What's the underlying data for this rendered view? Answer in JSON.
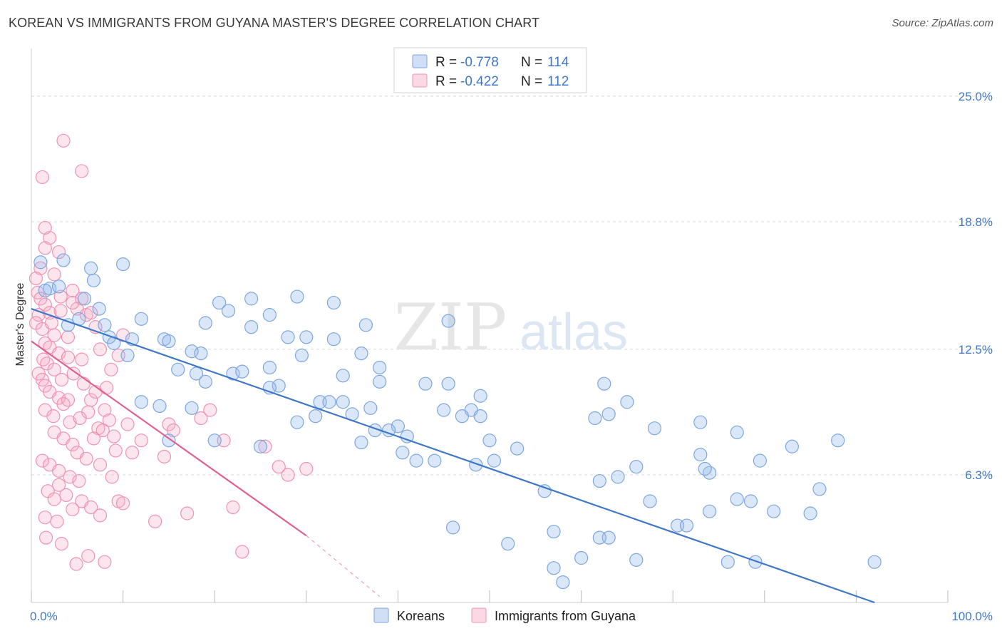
{
  "title": "KOREAN VS IMMIGRANTS FROM GUYANA MASTER'S DEGREE CORRELATION CHART",
  "source": "Source: ZipAtlas.com",
  "watermark": {
    "zip": "ZIP",
    "atlas": "atlas"
  },
  "legend_top": [
    {
      "r_label": "R =",
      "r_value": "-0.778",
      "n_label": "N =",
      "n_value": "114"
    },
    {
      "r_label": "R =",
      "r_value": "-0.422",
      "n_label": "N =",
      "n_value": "112"
    }
  ],
  "colors": {
    "blue": "#3f78c8",
    "blue_fill": "rgba(150,185,235,0.35)",
    "blue_stroke": "#7ea6de",
    "pink": "#e0608e",
    "pink_fill": "rgba(245,170,195,0.30)",
    "pink_stroke": "#ef93b4",
    "grid": "#d8d8d8"
  },
  "chart_data": {
    "type": "scatter",
    "ylabel": "Master's Degree",
    "xlim": [
      0,
      100
    ],
    "ylim": [
      0,
      27
    ],
    "x_tick_labels": [
      {
        "value": 0,
        "label": "0.0%"
      },
      {
        "value": 100,
        "label": "100.0%"
      }
    ],
    "y_tick_labels": [
      {
        "value": 25.0,
        "label": "25.0%"
      },
      {
        "value": 18.8,
        "label": "18.8%"
      },
      {
        "value": 12.5,
        "label": "12.5%"
      },
      {
        "value": 6.3,
        "label": "6.3%"
      }
    ],
    "legend_position": "bottom-center",
    "series": [
      {
        "name": "Koreans",
        "color": "blue",
        "trend": {
          "x1": 0,
          "y1": 14.5,
          "x2": 92,
          "y2": 0
        },
        "points": [
          [
            1,
            16.8
          ],
          [
            2,
            15.5
          ],
          [
            3,
            15.6
          ],
          [
            1.5,
            15.4
          ],
          [
            3.5,
            16.9
          ],
          [
            6.5,
            16.5
          ],
          [
            10,
            16.7
          ],
          [
            6.8,
            15.9
          ],
          [
            5.8,
            15.0
          ],
          [
            7.4,
            14.5
          ],
          [
            4,
            13.7
          ],
          [
            5.2,
            14.0
          ],
          [
            8,
            13.7
          ],
          [
            12,
            14.0
          ],
          [
            14.5,
            13.0
          ],
          [
            19,
            13.8
          ],
          [
            24,
            13.6
          ],
          [
            26,
            14.2
          ],
          [
            20.5,
            14.8
          ],
          [
            21.5,
            14.4
          ],
          [
            24,
            15.0
          ],
          [
            29,
            15.1
          ],
          [
            33,
            14.8
          ],
          [
            8.5,
            13.1
          ],
          [
            9,
            12.8
          ],
          [
            10.5,
            12.2
          ],
          [
            15,
            12.9
          ],
          [
            17.5,
            12.4
          ],
          [
            18.5,
            12.3
          ],
          [
            11,
            13.0
          ],
          [
            16,
            11.5
          ],
          [
            18,
            11.3
          ],
          [
            19,
            10.9
          ],
          [
            22,
            11.3
          ],
          [
            23,
            11.4
          ],
          [
            27,
            10.7
          ],
          [
            26,
            11.6
          ],
          [
            28,
            13.1
          ],
          [
            30,
            13.1
          ],
          [
            29.5,
            12.2
          ],
          [
            33,
            13.0
          ],
          [
            36.5,
            13.7
          ],
          [
            36,
            12.3
          ],
          [
            38,
            11.6
          ],
          [
            34,
            11.2
          ],
          [
            38,
            10.9
          ],
          [
            43,
            10.8
          ],
          [
            45.5,
            10.8
          ],
          [
            49,
            10.2
          ],
          [
            45.5,
            13.9
          ],
          [
            34,
            9.9
          ],
          [
            31.5,
            9.9
          ],
          [
            32.5,
            9.9
          ],
          [
            35,
            9.3
          ],
          [
            31,
            9.2
          ],
          [
            37,
            9.6
          ],
          [
            36,
            7.9
          ],
          [
            37.5,
            8.5
          ],
          [
            40,
            8.7
          ],
          [
            39,
            8.5
          ],
          [
            41,
            8.2
          ],
          [
            12,
            9.9
          ],
          [
            14,
            9.7
          ],
          [
            15,
            8.0
          ],
          [
            17.5,
            9.6
          ],
          [
            20,
            8.0
          ],
          [
            25,
            7.7
          ],
          [
            29,
            8.9
          ],
          [
            26,
            10.6
          ],
          [
            48,
            9.5
          ],
          [
            49,
            9.2
          ],
          [
            45,
            9.5
          ],
          [
            47,
            9.2
          ],
          [
            50,
            8.0
          ],
          [
            53,
            7.6
          ],
          [
            48.5,
            6.8
          ],
          [
            50.5,
            7.0
          ],
          [
            44,
            7.0
          ],
          [
            40.5,
            7.4
          ],
          [
            42,
            7.0
          ],
          [
            46,
            3.7
          ],
          [
            57,
            3.5
          ],
          [
            63,
            3.2
          ],
          [
            70.5,
            3.8
          ],
          [
            71.5,
            3.8
          ],
          [
            74,
            4.5
          ],
          [
            81,
            4.5
          ],
          [
            76,
            2.0
          ],
          [
            79,
            2.0
          ],
          [
            66,
            2.1
          ],
          [
            62,
            3.2
          ],
          [
            60,
            2.2
          ],
          [
            57,
            1.7
          ],
          [
            58,
            1.0
          ],
          [
            52,
            2.9
          ],
          [
            56,
            5.5
          ],
          [
            62,
            6.0
          ],
          [
            64,
            6.2
          ],
          [
            66,
            6.7
          ],
          [
            67.5,
            5.0
          ],
          [
            73,
            7.3
          ],
          [
            74,
            6.4
          ],
          [
            77,
            8.4
          ],
          [
            73.5,
            6.6
          ],
          [
            78.5,
            5.0
          ],
          [
            79.5,
            7.0
          ],
          [
            62.5,
            10.8
          ],
          [
            63,
            9.3
          ],
          [
            61.5,
            9.1
          ],
          [
            65,
            9.9
          ],
          [
            68,
            8.6
          ],
          [
            73,
            8.9
          ],
          [
            77,
            5.1
          ],
          [
            92,
            2.0
          ],
          [
            86,
            5.6
          ],
          [
            88,
            8.0
          ],
          [
            83,
            7.7
          ],
          [
            85,
            4.4
          ]
        ]
      },
      {
        "name": "Immigrants from Guyana",
        "color": "pink",
        "trend": {
          "x1": 0,
          "y1": 12.9,
          "x2": 30,
          "y2": 3.3
        },
        "trend_ext": {
          "x1": 30,
          "y1": 3.3,
          "x2": 38,
          "y2": 0.3
        },
        "points": [
          [
            3.5,
            22.8
          ],
          [
            5.5,
            21.3
          ],
          [
            1.2,
            21.0
          ],
          [
            1.5,
            18.5
          ],
          [
            2,
            18.0
          ],
          [
            1.5,
            17.5
          ],
          [
            3,
            17.3
          ],
          [
            1,
            16.5
          ],
          [
            0.5,
            16.0
          ],
          [
            2.5,
            16.2
          ],
          [
            0.7,
            15.3
          ],
          [
            1,
            15.0
          ],
          [
            1.5,
            14.7
          ],
          [
            0.8,
            14.2
          ],
          [
            2,
            14.3
          ],
          [
            0.5,
            13.8
          ],
          [
            1.2,
            13.5
          ],
          [
            2.5,
            13.2
          ],
          [
            4,
            13.1
          ],
          [
            5,
            14.5
          ],
          [
            4.5,
            14.8
          ],
          [
            3.2,
            14.4
          ],
          [
            6,
            14.2
          ],
          [
            1.5,
            12.8
          ],
          [
            2,
            12.6
          ],
          [
            3,
            12.3
          ],
          [
            4,
            12.1
          ],
          [
            1.3,
            12.0
          ],
          [
            1.7,
            11.8
          ],
          [
            2.5,
            11.5
          ],
          [
            5.5,
            12.0
          ],
          [
            7.5,
            12.5
          ],
          [
            0.8,
            11.3
          ],
          [
            1.2,
            11.0
          ],
          [
            1.5,
            10.7
          ],
          [
            2,
            10.4
          ],
          [
            3,
            10.1
          ],
          [
            4,
            10.0
          ],
          [
            3.5,
            9.8
          ],
          [
            1.5,
            9.5
          ],
          [
            2.4,
            9.2
          ],
          [
            4.2,
            8.9
          ],
          [
            6.5,
            10.0
          ],
          [
            5.7,
            10.8
          ],
          [
            6.2,
            9.4
          ],
          [
            2.5,
            8.4
          ],
          [
            3.5,
            8.1
          ],
          [
            4.5,
            7.8
          ],
          [
            5,
            7.4
          ],
          [
            1.2,
            7.0
          ],
          [
            2,
            6.8
          ],
          [
            3,
            6.5
          ],
          [
            4.2,
            6.2
          ],
          [
            3,
            5.8
          ],
          [
            1.8,
            5.5
          ],
          [
            2.5,
            5.1
          ],
          [
            5.5,
            5.0
          ],
          [
            6.5,
            4.7
          ],
          [
            4.5,
            4.6
          ],
          [
            7.5,
            4.3
          ],
          [
            1.5,
            4.2
          ],
          [
            7.3,
            8.6
          ],
          [
            8.5,
            9.0
          ],
          [
            9,
            8.2
          ],
          [
            8,
            9.5
          ],
          [
            7,
            10.4
          ],
          [
            7.8,
            8.5
          ],
          [
            8.2,
            10.6
          ],
          [
            8.7,
            11.5
          ],
          [
            9.5,
            12.2
          ],
          [
            10,
            13.2
          ],
          [
            7,
            13.6
          ],
          [
            6.5,
            14.3
          ],
          [
            5.5,
            15.0
          ],
          [
            4.5,
            15.4
          ],
          [
            3.2,
            15.1
          ],
          [
            2.2,
            13.8
          ],
          [
            3.3,
            11.0
          ],
          [
            4.6,
            11.3
          ],
          [
            5.3,
            9.1
          ],
          [
            6.8,
            8.1
          ],
          [
            7.5,
            6.8
          ],
          [
            8.8,
            6.2
          ],
          [
            11,
            7.4
          ],
          [
            15,
            8.8
          ],
          [
            18.5,
            9.1
          ],
          [
            9.5,
            5.0
          ],
          [
            10,
            4.9
          ],
          [
            13.5,
            4.0
          ],
          [
            14.5,
            7.2
          ],
          [
            17,
            4.4
          ],
          [
            22,
            4.7
          ],
          [
            23,
            2.5
          ],
          [
            27,
            6.7
          ],
          [
            30,
            6.6
          ],
          [
            28,
            6.3
          ],
          [
            25.5,
            7.7
          ],
          [
            21,
            8.0
          ],
          [
            19.5,
            9.5
          ],
          [
            15.5,
            8.5
          ],
          [
            12,
            8.0
          ],
          [
            10.5,
            8.8
          ],
          [
            9.2,
            7.5
          ],
          [
            6,
            7.1
          ],
          [
            5.2,
            6.0
          ],
          [
            3.8,
            5.3
          ],
          [
            2.8,
            4.0
          ],
          [
            1.6,
            3.2
          ],
          [
            3.3,
            2.9
          ],
          [
            4.9,
            1.9
          ],
          [
            6.2,
            2.3
          ],
          [
            8,
            2.0
          ]
        ]
      }
    ]
  },
  "legend_bottom": [
    {
      "label": "Koreans"
    },
    {
      "label": "Immigrants from Guyana"
    }
  ]
}
